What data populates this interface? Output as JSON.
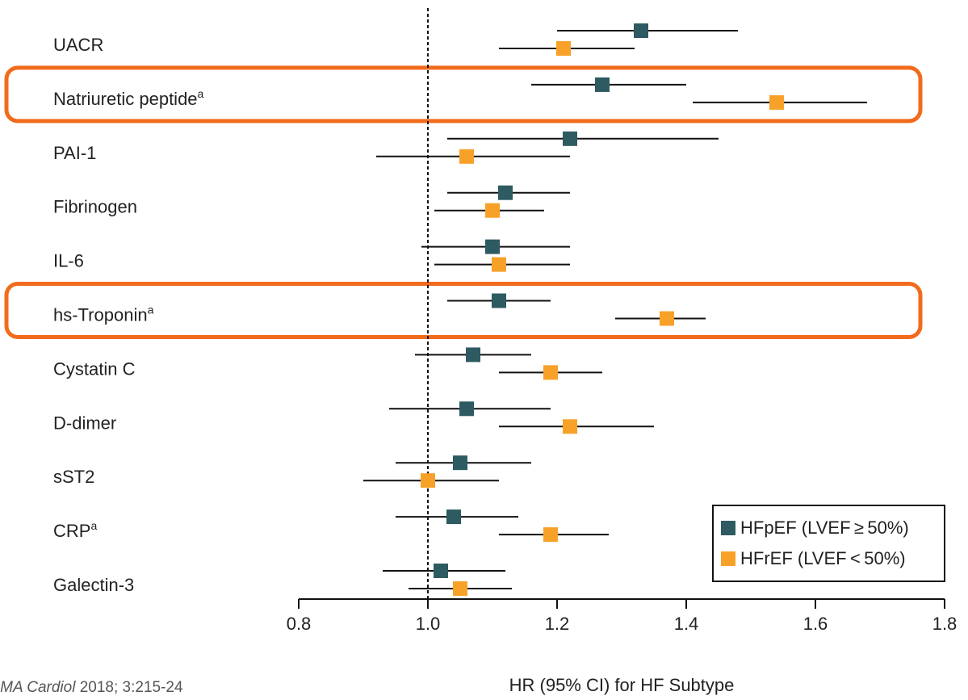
{
  "chart_data": {
    "type": "forest",
    "x_label": "HR (95% CI) for HF Subtype",
    "categories": [
      "UACR",
      "Natriuretic peptide",
      "PAI-1",
      "Fibrinogen",
      "IL-6",
      "hs-Troponin",
      "Cystatin C",
      "D-dimer",
      "sST2",
      "CRP",
      "Galectin-3"
    ],
    "footnotes": [
      null,
      "a",
      null,
      null,
      null,
      "a",
      null,
      null,
      null,
      "a",
      null
    ],
    "highlighted": [
      false,
      true,
      false,
      false,
      false,
      true,
      false,
      false,
      false,
      false,
      false
    ],
    "highlight_color": "#f26b1d",
    "series": [
      {
        "name": "HFpEF (LVEF ≥ 50%)",
        "color": "#2e5a62",
        "values": [
          1.33,
          1.27,
          1.22,
          1.12,
          1.1,
          1.11,
          1.07,
          1.06,
          1.05,
          1.04,
          1.02
        ],
        "ci_low": [
          1.2,
          1.16,
          1.03,
          1.03,
          0.99,
          1.03,
          0.98,
          0.94,
          0.95,
          0.95,
          0.93
        ],
        "ci_high": [
          1.48,
          1.4,
          1.45,
          1.22,
          1.22,
          1.19,
          1.16,
          1.19,
          1.16,
          1.14,
          1.12
        ]
      },
      {
        "name": "HFrEF (LVEF < 50%)",
        "color": "#f7a128",
        "values": [
          1.21,
          1.54,
          1.06,
          1.1,
          1.11,
          1.37,
          1.19,
          1.22,
          1.0,
          1.19,
          1.05
        ],
        "ci_low": [
          1.11,
          1.41,
          0.92,
          1.01,
          1.01,
          1.29,
          1.11,
          1.11,
          0.9,
          1.11,
          0.97
        ],
        "ci_high": [
          1.32,
          1.68,
          1.22,
          1.18,
          1.22,
          1.43,
          1.27,
          1.35,
          1.11,
          1.28,
          1.13
        ]
      }
    ],
    "xlim": [
      0.8,
      1.8
    ],
    "xticks": [
      {
        "value": 0.8,
        "label": "0.8"
      },
      {
        "value": 1.0,
        "label": "1.0"
      },
      {
        "value": 1.2,
        "label": "1.2"
      },
      {
        "value": 1.4,
        "label": "1.4"
      },
      {
        "value": 1.6,
        "label": "1.6"
      },
      {
        "value": 1.8,
        "label": "1.8"
      }
    ],
    "reference_line": 1,
    "legend_position": "lower right",
    "source_journal": "JAMA Cardiol",
    "source_ref": " 2018; 3:215-24"
  }
}
